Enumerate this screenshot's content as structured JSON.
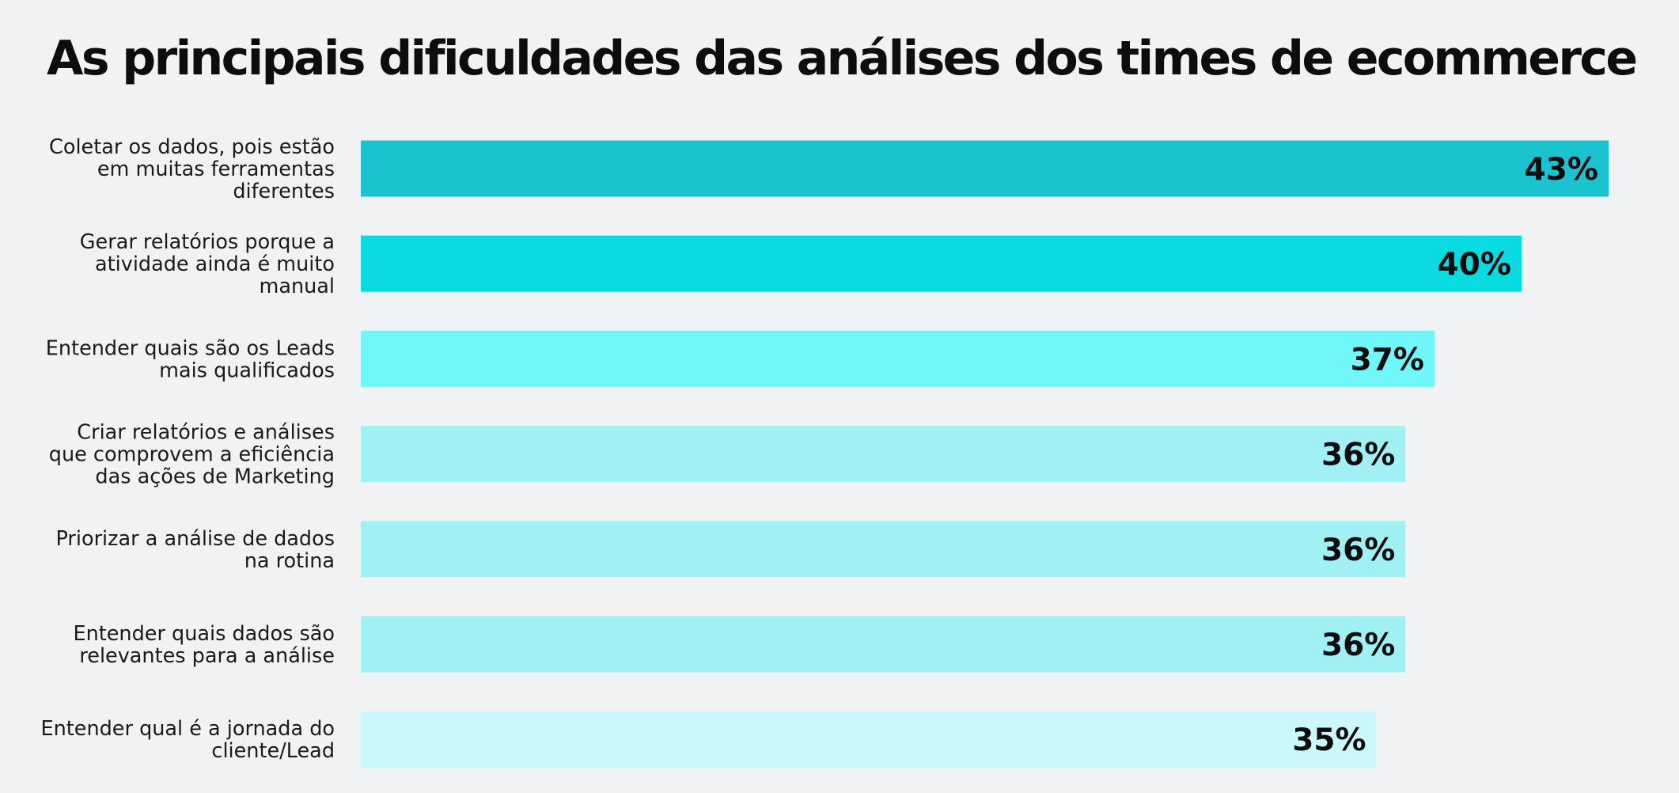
{
  "chart_data": {
    "type": "bar",
    "orientation": "horizontal",
    "title": "As principais dificuldades das análises dos times de ecommerce",
    "categories": [
      [
        "Coletar os dados, pois estão",
        "em muitas ferramentas",
        "diferentes"
      ],
      [
        "Gerar relatórios porque a",
        "atividade ainda é muito",
        "manual"
      ],
      [
        "Entender quais são os Leads",
        "mais qualificados"
      ],
      [
        "Criar relatórios e análises",
        "que comprovem a eficiência",
        "das ações de Marketing"
      ],
      [
        "Priorizar a análise de dados",
        "na rotina"
      ],
      [
        "Entender quais dados são",
        "relevantes para a análise"
      ],
      [
        "Entender qual é a jornada do",
        "cliente/Lead"
      ]
    ],
    "values": [
      43,
      40,
      37,
      36,
      36,
      36,
      35
    ],
    "value_labels": [
      "43%",
      "40%",
      "37%",
      "36%",
      "36%",
      "36%",
      "35%"
    ],
    "colors": [
      "#1bc3d0",
      "#0adbe0",
      "#71f7fa",
      "#a1f1f4",
      "#a1f1f4",
      "#a1f1f4",
      "#cbf8fa"
    ],
    "xlim": [
      0,
      43
    ],
    "grid": false,
    "legend": "none"
  }
}
